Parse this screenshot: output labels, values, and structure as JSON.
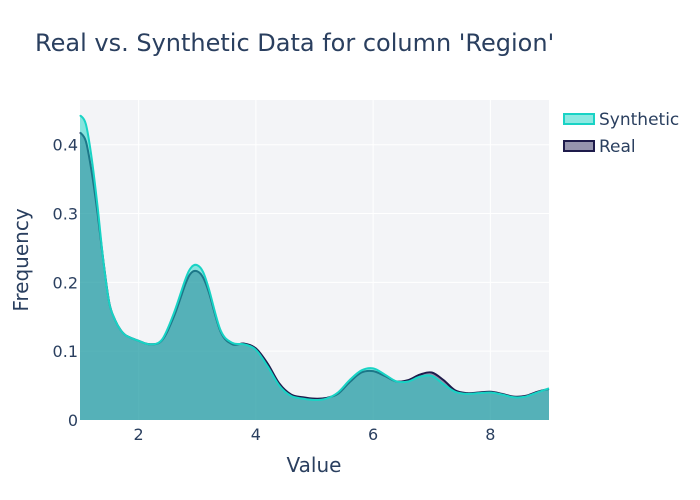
{
  "chart_data": {
    "type": "area",
    "title": "Real vs. Synthetic Data for column 'Region'",
    "xlabel": "Value",
    "ylabel": "Frequency",
    "xlim": [
      1,
      9
    ],
    "ylim": [
      0,
      0.465
    ],
    "x_ticks": [
      2,
      4,
      6,
      8
    ],
    "y_ticks": [
      0,
      0.1,
      0.2,
      0.3,
      0.4
    ],
    "y_tick_labels": [
      "0",
      "0.1",
      "0.2",
      "0.3",
      "0.4"
    ],
    "grid": true,
    "legend_position": "top-right",
    "series": [
      {
        "name": "Synthetic",
        "line_color": "#19d3c5",
        "fill_color": "#19d3c5",
        "x": [
          1.0,
          1.1,
          1.2,
          1.3,
          1.4,
          1.5,
          1.6,
          1.7,
          1.8,
          2.0,
          2.2,
          2.4,
          2.6,
          2.8,
          2.9,
          3.0,
          3.1,
          3.2,
          3.4,
          3.6,
          3.8,
          4.0,
          4.2,
          4.4,
          4.6,
          4.8,
          5.0,
          5.2,
          5.4,
          5.6,
          5.8,
          6.0,
          6.2,
          6.4,
          6.6,
          6.8,
          7.0,
          7.2,
          7.4,
          7.6,
          7.8,
          8.0,
          8.2,
          8.4,
          8.6,
          8.8,
          9.0
        ],
        "y": [
          0.443,
          0.43,
          0.38,
          0.31,
          0.23,
          0.17,
          0.145,
          0.13,
          0.122,
          0.115,
          0.11,
          0.117,
          0.155,
          0.205,
          0.222,
          0.225,
          0.215,
          0.19,
          0.13,
          0.112,
          0.11,
          0.102,
          0.078,
          0.05,
          0.035,
          0.031,
          0.029,
          0.031,
          0.04,
          0.058,
          0.072,
          0.075,
          0.066,
          0.056,
          0.056,
          0.063,
          0.064,
          0.052,
          0.041,
          0.038,
          0.039,
          0.04,
          0.037,
          0.033,
          0.034,
          0.04,
          0.046
        ]
      },
      {
        "name": "Real",
        "line_color": "#1e1b4b",
        "fill_color": "#2e2a5e",
        "x": [
          1.0,
          1.1,
          1.2,
          1.3,
          1.4,
          1.5,
          1.6,
          1.7,
          1.8,
          2.0,
          2.2,
          2.4,
          2.6,
          2.8,
          2.9,
          3.0,
          3.1,
          3.2,
          3.4,
          3.6,
          3.8,
          4.0,
          4.2,
          4.4,
          4.6,
          4.8,
          5.0,
          5.2,
          5.4,
          5.6,
          5.8,
          6.0,
          6.2,
          6.4,
          6.6,
          6.8,
          7.0,
          7.2,
          7.4,
          7.6,
          7.8,
          8.0,
          8.2,
          8.4,
          8.6,
          8.8,
          9.0
        ],
        "y": [
          0.418,
          0.405,
          0.36,
          0.3,
          0.23,
          0.17,
          0.145,
          0.13,
          0.122,
          0.115,
          0.11,
          0.116,
          0.15,
          0.198,
          0.214,
          0.216,
          0.207,
          0.185,
          0.128,
          0.11,
          0.111,
          0.104,
          0.082,
          0.053,
          0.037,
          0.033,
          0.031,
          0.032,
          0.038,
          0.055,
          0.069,
          0.071,
          0.064,
          0.056,
          0.058,
          0.066,
          0.069,
          0.058,
          0.043,
          0.039,
          0.04,
          0.041,
          0.038,
          0.034,
          0.035,
          0.041,
          0.045
        ]
      }
    ]
  },
  "colors": {
    "plot_bg": "#e5ecf6",
    "grid": "#ffffff",
    "text": "#2a3f5f"
  }
}
